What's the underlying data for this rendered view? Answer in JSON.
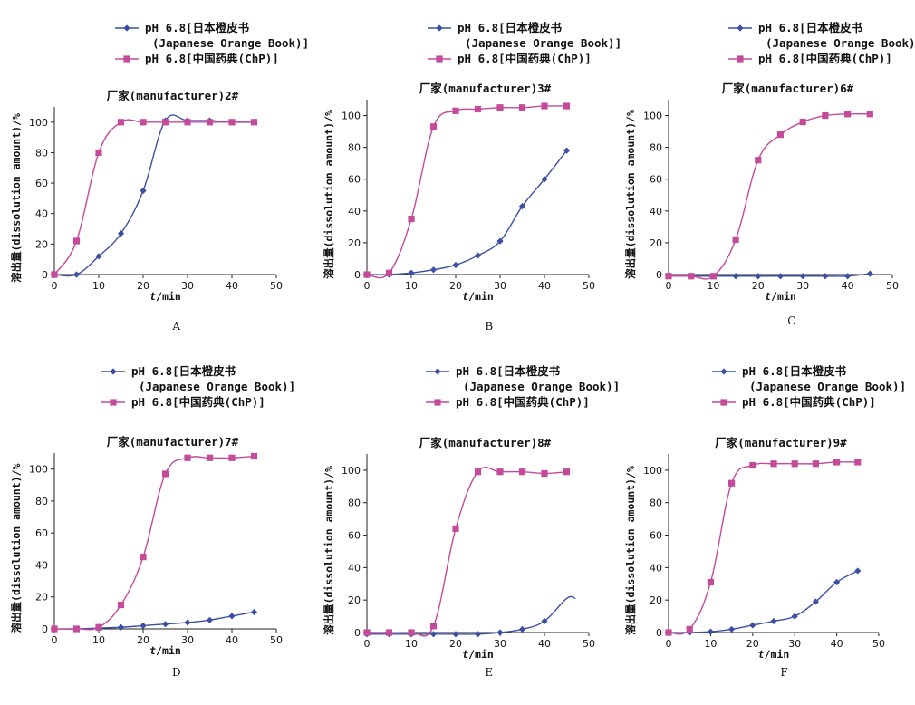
{
  "chart_data": [
    {
      "panel": "A",
      "type": "line",
      "title": "厂家(manufacturer)2#",
      "xlabel_italic": "t",
      "xlabel_unit": "/min",
      "ylabel": "溶出量(dissolution amount)/%",
      "xlim": [
        0,
        50
      ],
      "ylim": [
        0,
        110
      ],
      "xticks": [
        0,
        10,
        20,
        30,
        40,
        50
      ],
      "yticks": [
        0,
        20,
        40,
        60,
        80,
        100
      ],
      "legend": "top",
      "series": [
        {
          "name": "pH 6.8[日本橙皮书",
          "name_line2": "(Japanese Orange Book)]",
          "color": "#3b4fa3",
          "marker": "diamond",
          "x": [
            0,
            5,
            10,
            15,
            20,
            25,
            30,
            35,
            40,
            45
          ],
          "y": [
            0,
            0,
            12,
            27,
            55,
            101,
            101,
            101,
            100,
            100
          ]
        },
        {
          "name": "pH 6.8[中国药典(ChP)]",
          "color": "#c44a9a",
          "marker": "square",
          "x": [
            0,
            5,
            10,
            15,
            20,
            25,
            30,
            35,
            40,
            45
          ],
          "y": [
            0,
            22,
            80,
            100,
            100,
            100,
            100,
            100,
            100,
            100
          ]
        }
      ]
    },
    {
      "panel": "B",
      "type": "line",
      "title": "厂家(manufacturer)3#",
      "xlabel_italic": "t",
      "xlabel_unit": "/min",
      "ylabel": "溶出量(dissolution amount)/%",
      "xlim": [
        0,
        50
      ],
      "ylim": [
        0,
        110
      ],
      "xticks": [
        0,
        10,
        20,
        30,
        40,
        50
      ],
      "yticks": [
        0,
        20,
        40,
        60,
        80,
        100
      ],
      "legend": "top",
      "series": [
        {
          "name": "pH 6.8[日本橙皮书",
          "name_line2": "(Japanese Orange Book)]",
          "color": "#3b4fa3",
          "marker": "diamond",
          "x": [
            0,
            5,
            10,
            15,
            20,
            25,
            30,
            35,
            40,
            45
          ],
          "y": [
            0,
            0,
            1,
            3,
            6,
            12,
            21,
            43,
            60,
            78
          ]
        },
        {
          "name": "pH 6.8[中国药典(ChP)]",
          "color": "#c44a9a",
          "marker": "square",
          "x": [
            0,
            5,
            10,
            15,
            20,
            25,
            30,
            35,
            40,
            45
          ],
          "y": [
            0,
            1,
            35,
            93,
            103,
            104,
            105,
            105,
            106,
            106
          ]
        }
      ]
    },
    {
      "panel": "C",
      "type": "line",
      "title": "厂家(manufacturer)6#",
      "xlabel_italic": "t",
      "xlabel_unit": "/min",
      "ylabel": "溶出量(dissolution amount)/%",
      "xlim": [
        0,
        50
      ],
      "ylim": [
        0,
        110
      ],
      "xticks": [
        0,
        10,
        20,
        30,
        40,
        50
      ],
      "yticks": [
        0,
        20,
        40,
        60,
        80,
        100
      ],
      "legend": "top",
      "series": [
        {
          "name": "pH 6.8[日本橙皮书",
          "name_line2": "(Japanese Orange Book)]",
          "color": "#3b4fa3",
          "marker": "diamond",
          "x": [
            0,
            5,
            10,
            15,
            20,
            25,
            30,
            35,
            40,
            45
          ],
          "y": [
            -1,
            -1,
            -1,
            -1,
            -1,
            -1,
            -1,
            -1,
            -1,
            0.5
          ]
        },
        {
          "name": "pH 6.8[中国药典(ChP)]",
          "color": "#c44a9a",
          "marker": "square",
          "x": [
            0,
            5,
            10,
            15,
            20,
            25,
            30,
            35,
            40,
            45
          ],
          "y": [
            -1,
            -1,
            -1,
            22,
            72,
            88,
            96,
            100,
            101,
            101
          ]
        }
      ]
    },
    {
      "panel": "D",
      "type": "line",
      "title": "厂家(manufacturer)7#",
      "xlabel_italic": "t",
      "xlabel_unit": "/min",
      "ylabel": "溶出量(dissolution amount)/%",
      "xlim": [
        0,
        50
      ],
      "ylim": [
        0,
        110
      ],
      "xticks": [
        0,
        10,
        20,
        30,
        40,
        50
      ],
      "yticks": [
        0,
        20,
        40,
        60,
        80,
        100
      ],
      "legend": "top",
      "series": [
        {
          "name": "pH 6.8[日本橙皮书",
          "name_line2": "(Japanese Orange Book)]",
          "color": "#3b4fa3",
          "marker": "diamond",
          "x": [
            0,
            5,
            10,
            15,
            20,
            25,
            30,
            35,
            40,
            45
          ],
          "y": [
            0,
            0,
            0.5,
            1,
            2,
            3,
            4,
            5.5,
            8,
            10.5
          ]
        },
        {
          "name": "pH 6.8[中国药典(ChP)]",
          "color": "#c44a9a",
          "marker": "square",
          "x": [
            0,
            5,
            10,
            15,
            20,
            25,
            30,
            35,
            40,
            45
          ],
          "y": [
            0,
            0,
            1,
            15,
            45,
            97,
            107,
            107,
            107,
            108
          ]
        }
      ]
    },
    {
      "panel": "E",
      "type": "line",
      "title": "厂家(manufacturer)8#",
      "xlabel_italic": "t",
      "xlabel_unit": "/min",
      "ylabel": "溶出量(dissolution amount)/%",
      "xlim": [
        0,
        50
      ],
      "ylim": [
        0,
        110
      ],
      "xticks": [
        0,
        10,
        20,
        30,
        40,
        50
      ],
      "yticks": [
        0,
        20,
        40,
        60,
        80,
        100
      ],
      "legend": "top",
      "series": [
        {
          "name": "pH 6.8[日本橙皮书",
          "name_line2": "(Japanese Orange Book)]",
          "color": "#3b4fa3",
          "marker": "diamond",
          "x": [
            0,
            5,
            10,
            15,
            20,
            25,
            30,
            35,
            40,
            45,
            47
          ],
          "y": [
            -1,
            -1,
            -1,
            -1,
            -1,
            -1,
            0,
            2,
            7,
            21,
            21
          ]
        },
        {
          "name": "pH 6.8[中国药典(ChP)]",
          "color": "#c44a9a",
          "marker": "square",
          "x": [
            0,
            5,
            10,
            15,
            20,
            25,
            30,
            35,
            40,
            45
          ],
          "y": [
            0,
            0,
            0,
            4,
            64,
            99,
            99,
            99,
            98,
            99
          ]
        }
      ]
    },
    {
      "panel": "F",
      "type": "line",
      "title": "厂家(manufacturer)9#",
      "xlabel_italic": "t",
      "xlabel_unit": "/min",
      "ylabel": "溶出量(dissolution amount)/%",
      "xlim": [
        0,
        50
      ],
      "ylim": [
        0,
        110
      ],
      "xticks": [
        0,
        10,
        20,
        30,
        40,
        50
      ],
      "yticks": [
        0,
        20,
        40,
        60,
        80,
        100
      ],
      "legend": "top",
      "series": [
        {
          "name": "pH 6.8[日本橙皮书",
          "name_line2": "(Japanese Orange Book)]",
          "color": "#3b4fa3",
          "marker": "diamond",
          "x": [
            0,
            5,
            10,
            15,
            20,
            25,
            30,
            35,
            40,
            45
          ],
          "y": [
            0,
            0,
            0.5,
            2,
            4.5,
            7,
            10,
            19,
            31,
            38
          ]
        },
        {
          "name": "pH 6.8[中国药典(ChP)]",
          "color": "#c44a9a",
          "marker": "square",
          "x": [
            0,
            5,
            10,
            15,
            20,
            25,
            30,
            35,
            40,
            45
          ],
          "y": [
            0,
            2,
            31,
            92,
            103,
            104,
            104,
            104,
            105,
            105
          ]
        }
      ]
    }
  ]
}
